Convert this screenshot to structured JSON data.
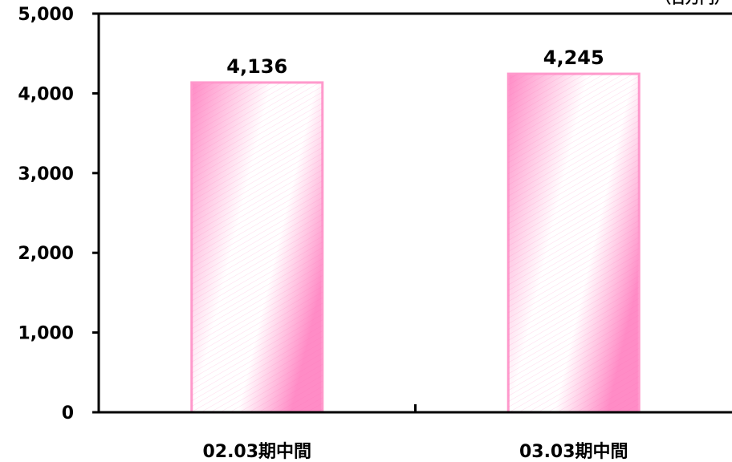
{
  "chart_data": {
    "type": "bar",
    "categories": [
      "02.03期中間",
      "03.03期中間"
    ],
    "values": [
      4136,
      4245
    ],
    "value_labels": [
      "4,136",
      "4,245"
    ],
    "ylim": [
      0,
      5000
    ],
    "yticks": [
      0,
      1000,
      2000,
      3000,
      4000,
      5000
    ],
    "ytick_labels": [
      "0",
      "1,000",
      "2,000",
      "3,000",
      "4,000",
      "5,000"
    ],
    "unit": "（百万円）",
    "grid": false,
    "colors": {
      "bar_fill": "#ff8cc6",
      "bar_border": "#ff99cc",
      "axis": "#000000"
    }
  }
}
